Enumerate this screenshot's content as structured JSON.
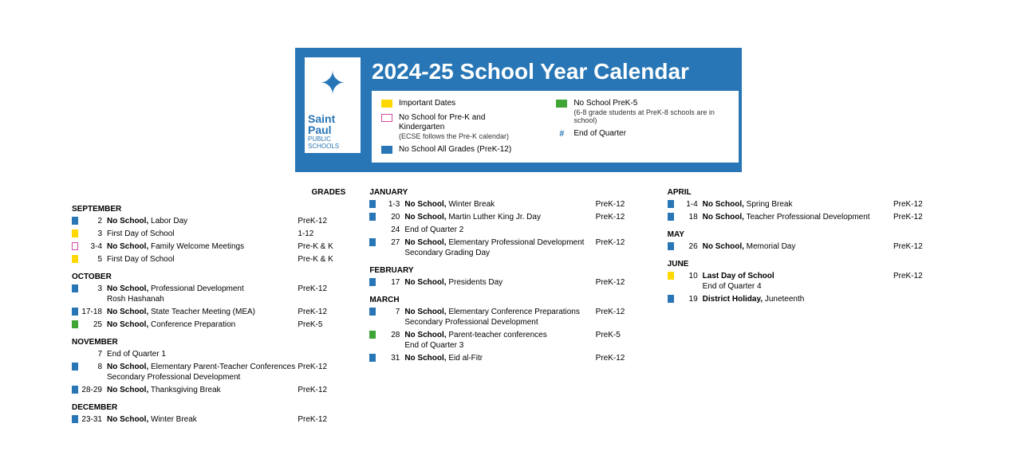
{
  "colors": {
    "blue": "#2876b5",
    "yellow": "#ffd800",
    "pink_border": "#d44aa0",
    "green": "#3fa535",
    "white": "#ffffff"
  },
  "header": {
    "logo": {
      "text_main": "Saint Paul",
      "text_sub": "PUBLIC SCHOOLS"
    },
    "title": "2024-25 School Year Calendar",
    "legend": {
      "col1": [
        {
          "swatch_type": "fill",
          "color_key": "yellow",
          "text": "Important Dates"
        },
        {
          "swatch_type": "outline",
          "color_key": "pink_border",
          "text": "No School for Pre-K and Kindergarten",
          "sub": "(ECSE follows the Pre-K calendar)"
        },
        {
          "swatch_type": "fill",
          "color_key": "blue",
          "text": "No School All Grades (PreK-12)"
        }
      ],
      "col2": [
        {
          "swatch_type": "fill",
          "color_key": "green",
          "text": "No School PreK-5",
          "sub": "(6-8 grade students at PreK-8 schools are in school)"
        },
        {
          "swatch_type": "hash",
          "text": "End of Quarter"
        }
      ]
    }
  },
  "grades_header": "GRADES",
  "columns": [
    {
      "months": [
        {
          "name": "SEPTEMBER",
          "events": [
            {
              "color_key": "blue",
              "date": "2",
              "bold": "No School,",
              "text": " Labor Day",
              "grades": "PreK-12"
            },
            {
              "color_key": "yellow",
              "date": "3",
              "bold": "",
              "text": "First Day of School",
              "grades": "1-12"
            },
            {
              "color_key": "pink_outline",
              "date": "3-4",
              "bold": "No School,",
              "text": " Family Welcome Meetings",
              "grades": "Pre-K & K"
            },
            {
              "color_key": "yellow",
              "date": "5",
              "bold": "",
              "text": "First Day of School",
              "grades": "Pre-K & K"
            }
          ]
        },
        {
          "name": "OCTOBER",
          "events": [
            {
              "color_key": "blue",
              "date": "3",
              "bold": "No School,",
              "text": " Professional Development",
              "line2": "Rosh Hashanah",
              "grades": "PreK-12"
            },
            {
              "color_key": "blue",
              "date": "17-18",
              "bold": "No School,",
              "text": " State Teacher Meeting (MEA)",
              "grades": "PreK-12"
            },
            {
              "color_key": "green",
              "date": "25",
              "bold": "No School,",
              "text": " Conference Preparation",
              "grades": "PreK-5"
            }
          ]
        },
        {
          "name": "NOVEMBER",
          "events": [
            {
              "color_key": "none",
              "date": "7",
              "bold": "",
              "text": "End of Quarter 1",
              "grades": ""
            },
            {
              "color_key": "blue",
              "date": "8",
              "bold": "No School,",
              "text": " Elementary Parent-Teacher Conferences",
              "line2": "Secondary Professional Development",
              "grades": "PreK-12"
            },
            {
              "color_key": "blue",
              "date": "28-29",
              "bold": "No School,",
              "text": " Thanksgiving Break",
              "grades": "PreK-12"
            }
          ]
        },
        {
          "name": "DECEMBER",
          "events": [
            {
              "color_key": "blue",
              "date": "23-31",
              "bold": "No School,",
              "text": " Winter Break",
              "grades": "PreK-12"
            }
          ]
        }
      ]
    },
    {
      "months": [
        {
          "name": "JANUARY",
          "events": [
            {
              "color_key": "blue",
              "date": "1-3",
              "bold": "No School,",
              "text": " Winter Break",
              "grades": "PreK-12"
            },
            {
              "color_key": "blue",
              "date": "20",
              "bold": "No School,",
              "text": " Martin Luther King Jr. Day",
              "grades": "PreK-12"
            },
            {
              "color_key": "none",
              "date": "24",
              "bold": "",
              "text": "End of Quarter 2",
              "grades": ""
            },
            {
              "color_key": "blue",
              "date": "27",
              "bold": "No School,",
              "text": " Elementary Professional Development",
              "line2": "Secondary Grading Day",
              "grades": "PreK-12"
            }
          ]
        },
        {
          "name": "FEBRUARY",
          "events": [
            {
              "color_key": "blue",
              "date": "17",
              "bold": "No School,",
              "text": " Presidents Day",
              "grades": "PreK-12"
            }
          ]
        },
        {
          "name": "MARCH",
          "events": [
            {
              "color_key": "blue",
              "date": "7",
              "bold": "No School,",
              "text": " Elementary Conference Preparations",
              "line2": "Secondary Professional Development",
              "grades": "PreK-12"
            },
            {
              "color_key": "green",
              "date": "28",
              "bold": "No School,",
              "text": " Parent-teacher conferences",
              "line2": "End of Quarter 3",
              "grades": "PreK-5"
            },
            {
              "color_key": "blue",
              "date": "31",
              "bold": "No School,",
              "text": " Eid al-Fitr",
              "grades": "PreK-12"
            }
          ]
        }
      ]
    },
    {
      "months": [
        {
          "name": "APRIL",
          "events": [
            {
              "color_key": "blue",
              "date": "1-4",
              "bold": "No School,",
              "text": " Spring Break",
              "grades": "PreK-12"
            },
            {
              "color_key": "blue",
              "date": "18",
              "bold": "No School,",
              "text": " Teacher Professional Development",
              "grades": "PreK-12"
            }
          ]
        },
        {
          "name": "MAY",
          "events": [
            {
              "color_key": "blue",
              "date": "26",
              "bold": "No School,",
              "text": " Memorial Day",
              "grades": "PreK-12"
            }
          ]
        },
        {
          "name": "JUNE",
          "events": [
            {
              "color_key": "yellow",
              "date": "10",
              "bold": "Last Day of School",
              "text": "",
              "line2": "End of Quarter 4",
              "grades": "PreK-12"
            },
            {
              "color_key": "blue",
              "date": "19",
              "bold": "District Holiday,",
              "text": " Juneteenth",
              "grades": ""
            }
          ]
        }
      ]
    }
  ]
}
